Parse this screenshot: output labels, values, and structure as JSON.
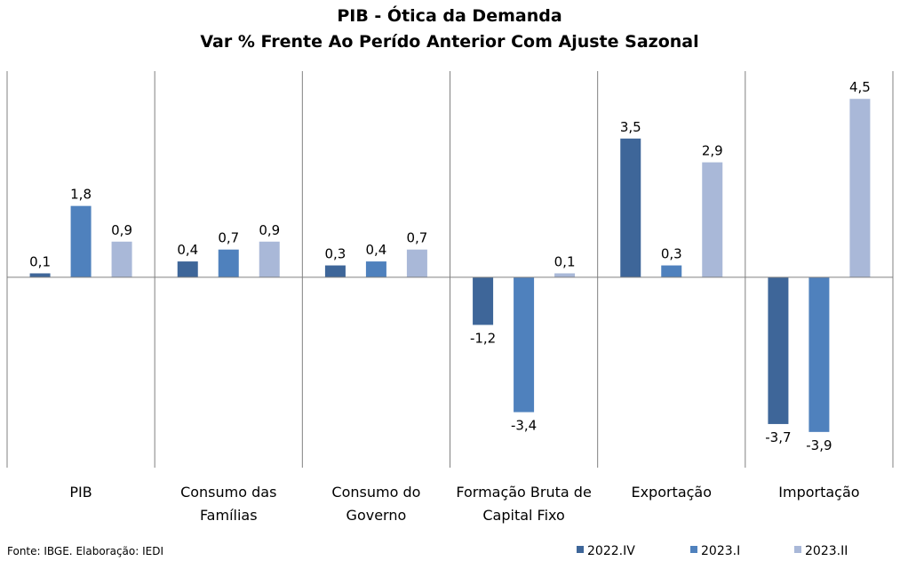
{
  "chart_data": {
    "type": "bar",
    "title": "PIB - Ótica da Demanda",
    "subtitle": "Var % Frente Ao Perído Anterior Com Ajuste Sazonal",
    "categories": [
      [
        "PIB"
      ],
      [
        "Consumo das",
        "Famílias"
      ],
      [
        "Consumo do",
        "Governo"
      ],
      [
        "Formação Bruta de",
        "Capital Fixo"
      ],
      [
        "Exportação"
      ],
      [
        "Importação"
      ]
    ],
    "series": [
      {
        "name": "2022.IV",
        "color": "#3e6699",
        "values": [
          0.1,
          0.4,
          0.3,
          -1.2,
          3.5,
          -3.7
        ],
        "labels": [
          "0,1",
          "0,4",
          "0,3",
          "-1,2",
          "3,5",
          "-3,7"
        ]
      },
      {
        "name": "2023.I",
        "color": "#4f81bd",
        "values": [
          1.8,
          0.7,
          0.4,
          -3.4,
          0.3,
          -3.9
        ],
        "labels": [
          "1,8",
          "0,7",
          "0,4",
          "-3,4",
          "0,3",
          "-3,9"
        ]
      },
      {
        "name": "2023.II",
        "color": "#a9b8d8",
        "values": [
          0.9,
          0.9,
          0.7,
          0.1,
          2.9,
          4.5
        ],
        "labels": [
          "0,9",
          "0,9",
          "0,7",
          "0,1",
          "2,9",
          "4,5"
        ]
      }
    ],
    "ylim": [
      -4.8,
      5.2
    ],
    "grid": false,
    "legend_position": "bottom-right",
    "source": "Fonte: IBGE. Elaboração: IEDI"
  }
}
